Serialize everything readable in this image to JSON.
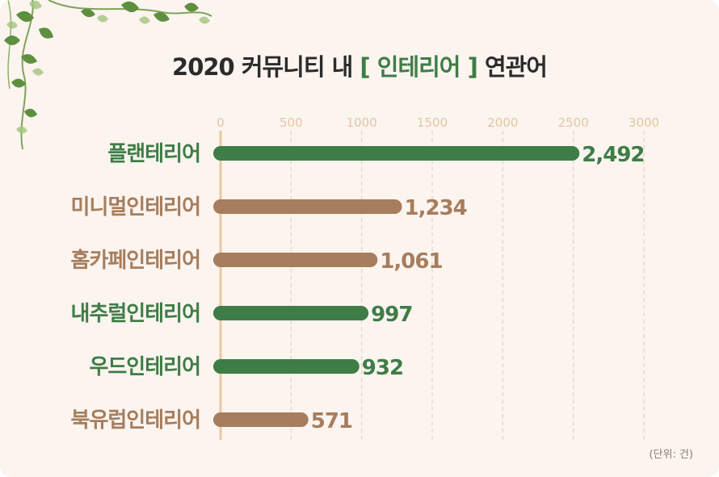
{
  "title": {
    "prefix": "2020 커뮤니티 내 ",
    "highlight": "[ 인테리어 ]",
    "suffix": " 연관어"
  },
  "unit_label": "(단위: 건)",
  "colors": {
    "background": "#fbf4ef",
    "green": "#3e7d46",
    "brown": "#a67d5d",
    "axis": "#e8c9a4",
    "grid": "#e4d3c0",
    "tick_text": "#e2c6a4"
  },
  "chart_data": {
    "type": "bar",
    "orientation": "horizontal",
    "title": "2020 커뮤니티 내 [ 인테리어 ] 연관어",
    "xlabel": "",
    "ylabel": "",
    "xlim": [
      0,
      3000
    ],
    "x_ticks": [
      0,
      500,
      1000,
      1500,
      2000,
      2500,
      3000
    ],
    "grid": true,
    "categories": [
      "플랜테리어",
      "미니멀인테리어",
      "홈카페인테리어",
      "내추럴인테리어",
      "우드인테리어",
      "북유럽인테리어"
    ],
    "values": [
      2492,
      1234,
      1061,
      997,
      932,
      571
    ],
    "value_labels": [
      "2,492",
      "1,234",
      "1,061",
      "997",
      "932",
      "571"
    ],
    "bar_colors": [
      "green",
      "brown",
      "brown",
      "green",
      "green",
      "brown"
    ]
  }
}
